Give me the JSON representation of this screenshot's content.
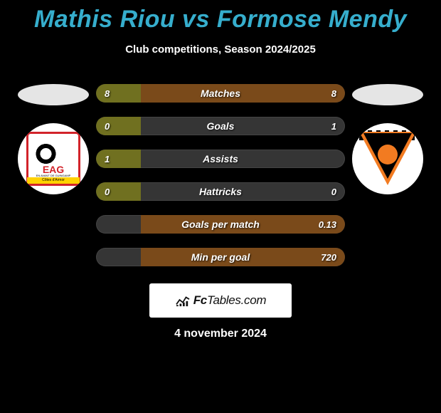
{
  "title": "Mathis Riou vs Formose Mendy",
  "subtitle": "Club competitions, Season 2024/2025",
  "title_color": "#36aecd",
  "background_color": "#000000",
  "text_color": "#ffffff",
  "bar_track_color": "#353535",
  "bar_left_color": "#707020",
  "bar_right_color": "#7a4a1a",
  "stats": [
    {
      "label": "Matches",
      "left_val": "8",
      "right_val": "8",
      "left_pct": 18,
      "right_pct": 82
    },
    {
      "label": "Goals",
      "left_val": "0",
      "right_val": "1",
      "left_pct": 18,
      "right_pct": 0
    },
    {
      "label": "Assists",
      "left_val": "1",
      "right_val": "",
      "left_pct": 18,
      "right_pct": 0
    },
    {
      "label": "Hattricks",
      "left_val": "0",
      "right_val": "0",
      "left_pct": 18,
      "right_pct": 0
    },
    {
      "label": "Goals per match",
      "left_val": "",
      "right_val": "0.13",
      "left_pct": 0,
      "right_pct": 82
    },
    {
      "label": "Min per goal",
      "left_val": "",
      "right_val": "720",
      "left_pct": 0,
      "right_pct": 82
    }
  ],
  "brand": {
    "prefix": "Fc",
    "suffix": "Tables.com"
  },
  "date": "4 november 2024",
  "teams": {
    "left": {
      "name": "EA Guingamp",
      "badge_colors": {
        "border": "#d2232a",
        "accent": "#ffd200"
      },
      "badge_text": "EAG",
      "badge_sub": "EN AVANT DE GUINGAMP",
      "badge_bar": "Côtes d'Armor"
    },
    "right": {
      "name": "FC Lorient",
      "badge_colors": {
        "main": "#f27b21",
        "dark": "#000000"
      }
    }
  }
}
